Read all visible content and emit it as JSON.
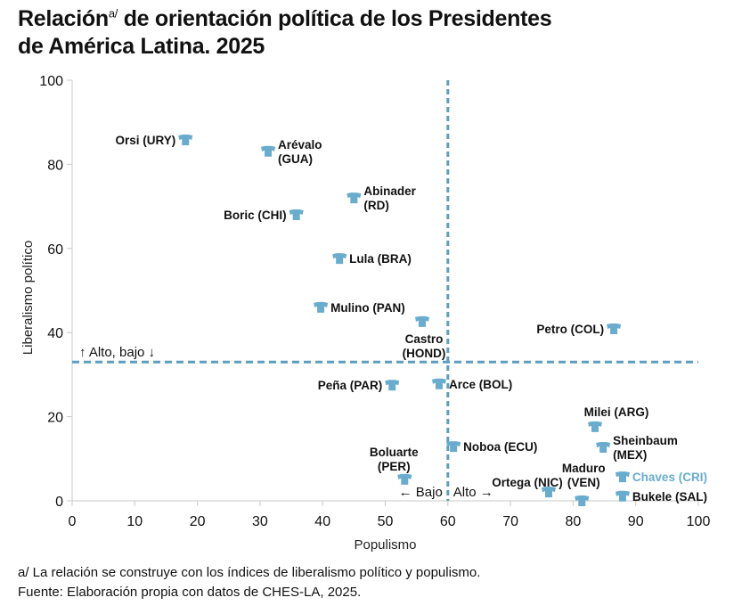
{
  "title": {
    "line1_a": "Relación",
    "superscript": "a/",
    "line1_b": " de orientación política de los Presidentes",
    "line2": "de América Latina. 2025"
  },
  "footnotes": [
    "a/ La relación se construye con los índices de liberalismo político y populismo.",
    "Fuente: Elaboración propia con datos de CHES-LA, 2025."
  ],
  "colors": {
    "marker": "#6aaccd",
    "threshold_line": "#5b9ebf",
    "highlight_label": "#6aaccd",
    "axis": "#c8c8c8"
  },
  "chart_data": {
    "type": "scatter",
    "title": "Relación de orientación política de los Presidentes de América Latina. 2025",
    "xlabel": "Populismo",
    "ylabel": "Liberalismo político",
    "xlim": [
      0,
      100
    ],
    "ylim": [
      0,
      100
    ],
    "xticks": [
      0,
      10,
      20,
      30,
      40,
      50,
      60,
      70,
      80,
      90,
      100
    ],
    "yticks": [
      0,
      20,
      40,
      60,
      80,
      100
    ],
    "grid": false,
    "thresholds": {
      "x": 60,
      "y": 33,
      "x_labels": {
        "left": "← Bajo",
        "right": "Alto →"
      },
      "y_label": "↑ Alto, bajo ↓"
    },
    "points": [
      {
        "label": "Orsi (URY)",
        "x": 18.1,
        "y": 85.8,
        "label_pos": "left"
      },
      {
        "label": "Arévalo (GUA)",
        "lines": [
          "Arévalo",
          "(GUA)"
        ],
        "x": 31.3,
        "y": 83.1,
        "label_pos": "right"
      },
      {
        "label": "Abinader (RD)",
        "lines": [
          "Abinader",
          "(RD)"
        ],
        "x": 45.0,
        "y": 72.0,
        "label_pos": "right"
      },
      {
        "label": "Boric (CHI)",
        "x": 35.8,
        "y": 68.0,
        "label_pos": "left"
      },
      {
        "label": "Lula (BRA)",
        "x": 42.7,
        "y": 57.6,
        "label_pos": "right"
      },
      {
        "label": "Mulino (PAN)",
        "x": 39.7,
        "y": 46.0,
        "label_pos": "right"
      },
      {
        "label": "Castro (HOND)",
        "lines": [
          "Castro",
          "(HOND)"
        ],
        "x": 55.9,
        "y": 42.6,
        "label_pos": "below"
      },
      {
        "label": "Petro (COL)",
        "x": 86.5,
        "y": 40.9,
        "label_pos": "left"
      },
      {
        "label": "Peña (PAR)",
        "x": 51.1,
        "y": 27.5,
        "label_pos": "left"
      },
      {
        "label": "Arce (BOL)",
        "x": 58.6,
        "y": 27.8,
        "label_pos": "right"
      },
      {
        "label": "Milei (ARG)",
        "x": 83.5,
        "y": 17.6,
        "label_pos": "above"
      },
      {
        "label": "Sheinbaum (MEX)",
        "lines": [
          "Sheinbaum",
          "(MEX)"
        ],
        "x": 84.8,
        "y": 12.7,
        "label_pos": "right"
      },
      {
        "label": "Noboa (ECU)",
        "x": 60.9,
        "y": 12.9,
        "label_pos": "right"
      },
      {
        "label": "Boluarte (PER)",
        "lines": [
          "Boluarte",
          "(PER)"
        ],
        "x": 53.1,
        "y": 5.1,
        "label_pos": "above-left"
      },
      {
        "label": "Chaves (CRI)",
        "x": 87.9,
        "y": 5.7,
        "label_pos": "right",
        "highlight": true
      },
      {
        "label": "Ortega (NIC)",
        "x": 76.1,
        "y": 2.1,
        "label_pos": "above-left"
      },
      {
        "label": "Maduro (VEN)",
        "lines": [
          "Maduro",
          "(VEN)"
        ],
        "x": 81.4,
        "y": 0.0,
        "label_pos": "above"
      },
      {
        "label": "Bukele (SAL)",
        "x": 87.9,
        "y": 1.1,
        "label_pos": "right"
      }
    ]
  }
}
